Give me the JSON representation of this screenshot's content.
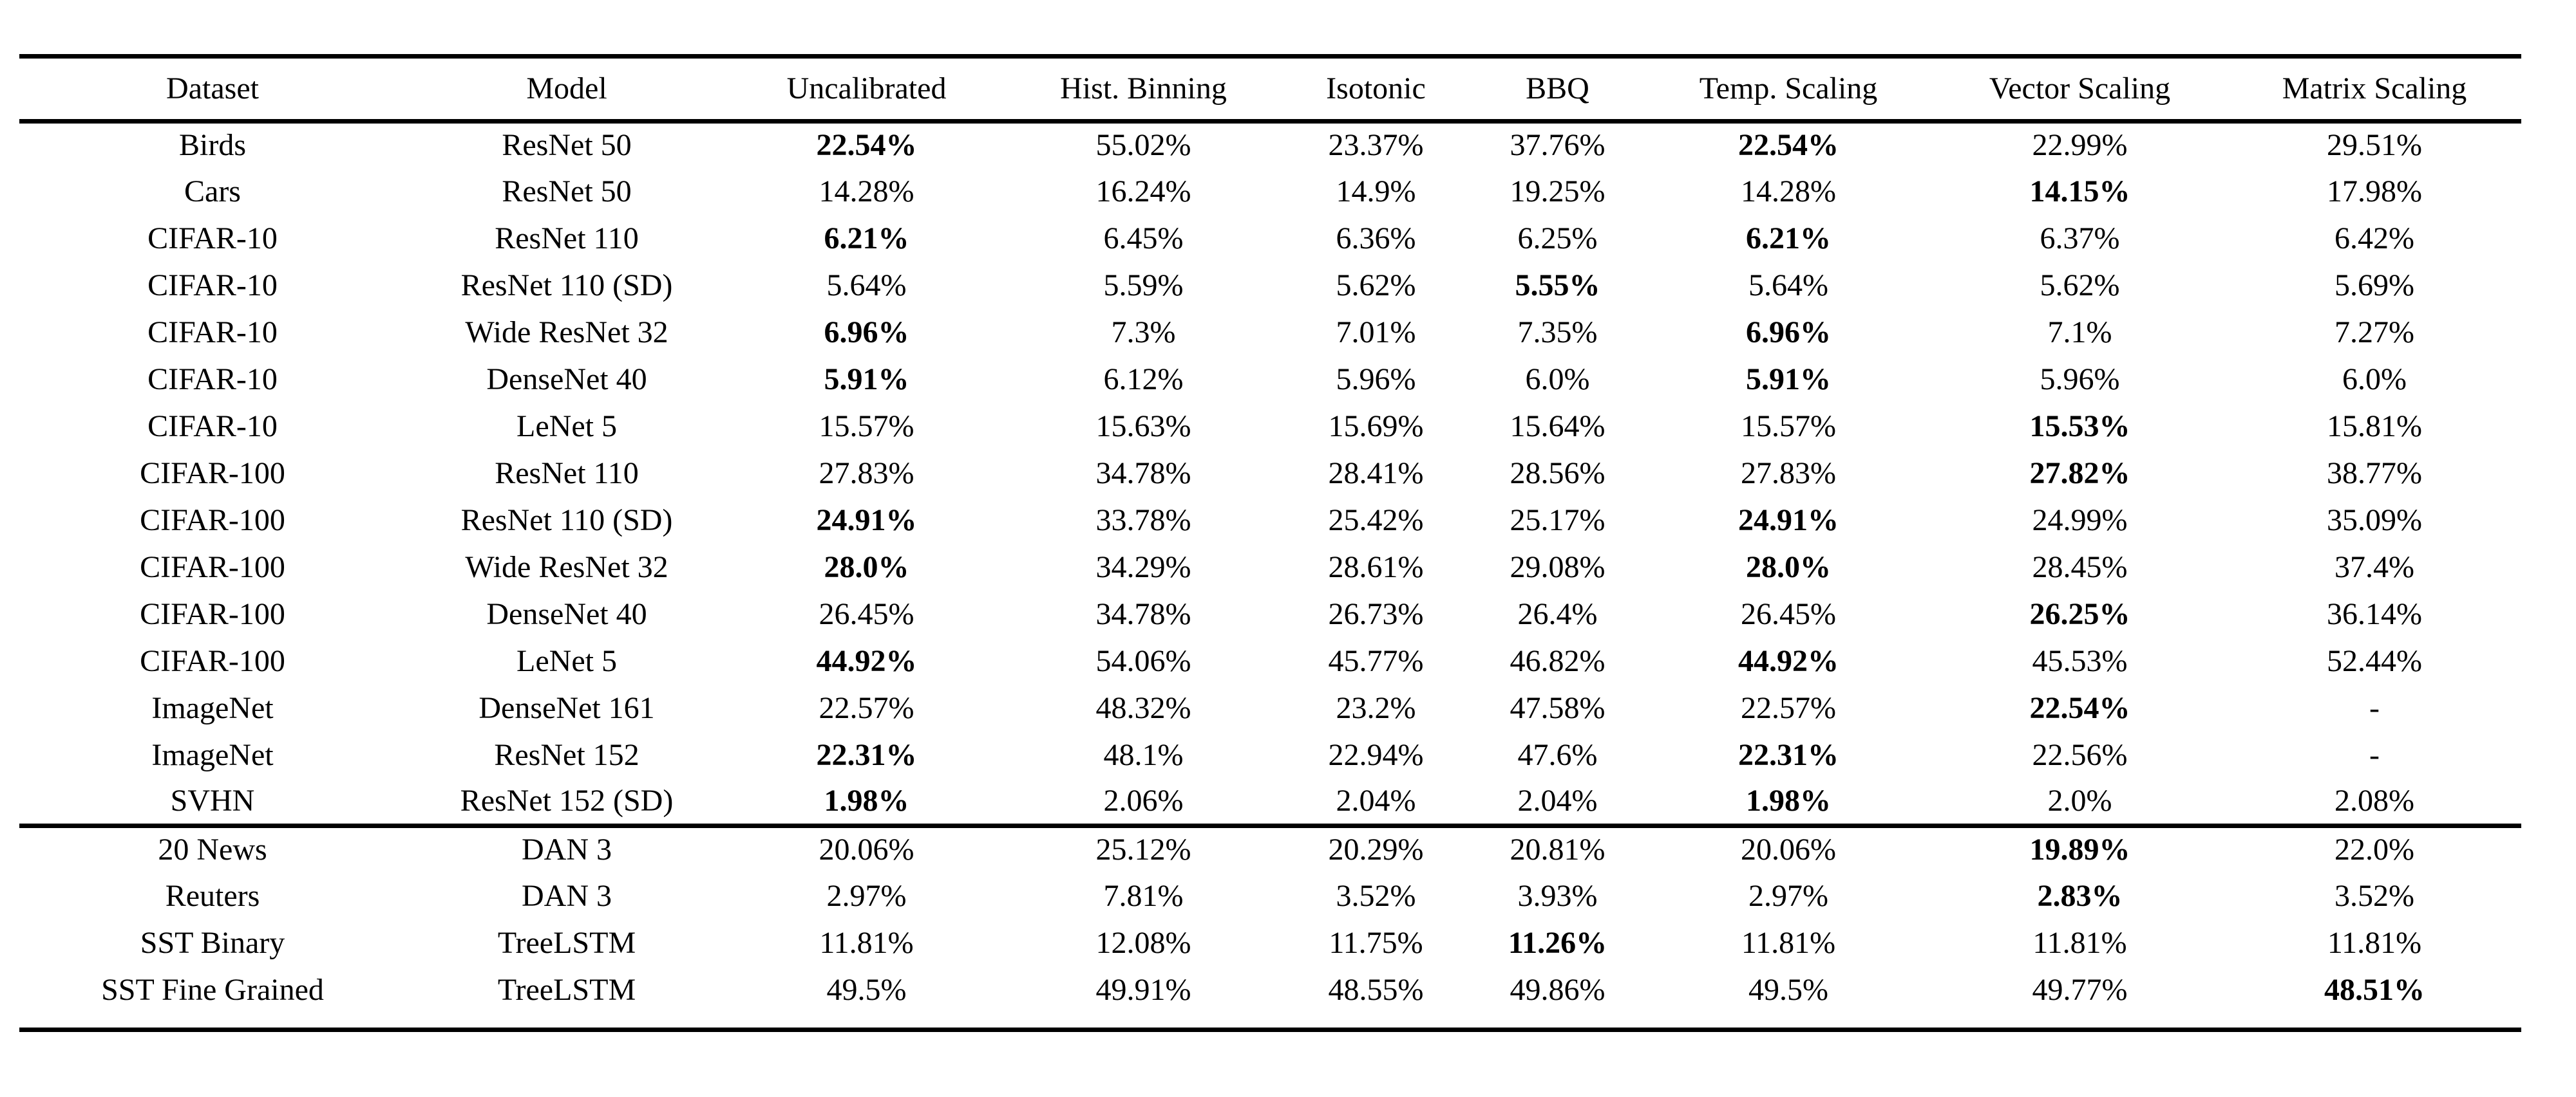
{
  "colors": {
    "background": "#ffffff",
    "text": "#000000",
    "rule": "#000000"
  },
  "table": {
    "columns": [
      "Dataset",
      "Model",
      "Uncalibrated",
      "Hist. Binning",
      "Isotonic",
      "BBQ",
      "Temp. Scaling",
      "Vector Scaling",
      "Matrix Scaling"
    ],
    "sections": [
      {
        "rows": [
          {
            "dataset": "Birds",
            "model": "ResNet 50",
            "values": [
              "22.54%",
              "55.02%",
              "23.37%",
              "37.76%",
              "22.54%",
              "22.99%",
              "29.51%"
            ],
            "bold": [
              0,
              4
            ]
          },
          {
            "dataset": "Cars",
            "model": "ResNet 50",
            "values": [
              "14.28%",
              "16.24%",
              "14.9%",
              "19.25%",
              "14.28%",
              "14.15%",
              "17.98%"
            ],
            "bold": [
              5
            ]
          },
          {
            "dataset": "CIFAR-10",
            "model": "ResNet 110",
            "values": [
              "6.21%",
              "6.45%",
              "6.36%",
              "6.25%",
              "6.21%",
              "6.37%",
              "6.42%"
            ],
            "bold": [
              0,
              4
            ]
          },
          {
            "dataset": "CIFAR-10",
            "model": "ResNet 110 (SD)",
            "values": [
              "5.64%",
              "5.59%",
              "5.62%",
              "5.55%",
              "5.64%",
              "5.62%",
              "5.69%"
            ],
            "bold": [
              3
            ]
          },
          {
            "dataset": "CIFAR-10",
            "model": "Wide ResNet 32",
            "values": [
              "6.96%",
              "7.3%",
              "7.01%",
              "7.35%",
              "6.96%",
              "7.1%",
              "7.27%"
            ],
            "bold": [
              0,
              4
            ]
          },
          {
            "dataset": "CIFAR-10",
            "model": "DenseNet 40",
            "values": [
              "5.91%",
              "6.12%",
              "5.96%",
              "6.0%",
              "5.91%",
              "5.96%",
              "6.0%"
            ],
            "bold": [
              0,
              4
            ]
          },
          {
            "dataset": "CIFAR-10",
            "model": "LeNet 5",
            "values": [
              "15.57%",
              "15.63%",
              "15.69%",
              "15.64%",
              "15.57%",
              "15.53%",
              "15.81%"
            ],
            "bold": [
              5
            ]
          },
          {
            "dataset": "CIFAR-100",
            "model": "ResNet 110",
            "values": [
              "27.83%",
              "34.78%",
              "28.41%",
              "28.56%",
              "27.83%",
              "27.82%",
              "38.77%"
            ],
            "bold": [
              5
            ]
          },
          {
            "dataset": "CIFAR-100",
            "model": "ResNet 110 (SD)",
            "values": [
              "24.91%",
              "33.78%",
              "25.42%",
              "25.17%",
              "24.91%",
              "24.99%",
              "35.09%"
            ],
            "bold": [
              0,
              4
            ]
          },
          {
            "dataset": "CIFAR-100",
            "model": "Wide ResNet 32",
            "values": [
              "28.0%",
              "34.29%",
              "28.61%",
              "29.08%",
              "28.0%",
              "28.45%",
              "37.4%"
            ],
            "bold": [
              0,
              4
            ]
          },
          {
            "dataset": "CIFAR-100",
            "model": "DenseNet 40",
            "values": [
              "26.45%",
              "34.78%",
              "26.73%",
              "26.4%",
              "26.45%",
              "26.25%",
              "36.14%"
            ],
            "bold": [
              5
            ]
          },
          {
            "dataset": "CIFAR-100",
            "model": "LeNet 5",
            "values": [
              "44.92%",
              "54.06%",
              "45.77%",
              "46.82%",
              "44.92%",
              "45.53%",
              "52.44%"
            ],
            "bold": [
              0,
              4
            ]
          },
          {
            "dataset": "ImageNet",
            "model": "DenseNet 161",
            "values": [
              "22.57%",
              "48.32%",
              "23.2%",
              "47.58%",
              "22.57%",
              "22.54%",
              "-"
            ],
            "bold": [
              5
            ]
          },
          {
            "dataset": "ImageNet",
            "model": "ResNet 152",
            "values": [
              "22.31%",
              "48.1%",
              "22.94%",
              "47.6%",
              "22.31%",
              "22.56%",
              "-"
            ],
            "bold": [
              0,
              4
            ]
          },
          {
            "dataset": "SVHN",
            "model": "ResNet 152 (SD)",
            "values": [
              "1.98%",
              "2.06%",
              "2.04%",
              "2.04%",
              "1.98%",
              "2.0%",
              "2.08%"
            ],
            "bold": [
              0,
              4
            ]
          }
        ]
      },
      {
        "rows": [
          {
            "dataset": "20 News",
            "model": "DAN 3",
            "values": [
              "20.06%",
              "25.12%",
              "20.29%",
              "20.81%",
              "20.06%",
              "19.89%",
              "22.0%"
            ],
            "bold": [
              5
            ]
          },
          {
            "dataset": "Reuters",
            "model": "DAN 3",
            "values": [
              "2.97%",
              "7.81%",
              "3.52%",
              "3.93%",
              "2.97%",
              "2.83%",
              "3.52%"
            ],
            "bold": [
              5
            ]
          },
          {
            "dataset": "SST Binary",
            "model": "TreeLSTM",
            "values": [
              "11.81%",
              "12.08%",
              "11.75%",
              "11.26%",
              "11.81%",
              "11.81%",
              "11.81%"
            ],
            "bold": [
              3
            ]
          },
          {
            "dataset": "SST Fine Grained",
            "model": "TreeLSTM",
            "values": [
              "49.5%",
              "49.91%",
              "48.55%",
              "49.86%",
              "49.5%",
              "49.77%",
              "48.51%"
            ],
            "bold": [
              6
            ]
          }
        ]
      }
    ]
  }
}
